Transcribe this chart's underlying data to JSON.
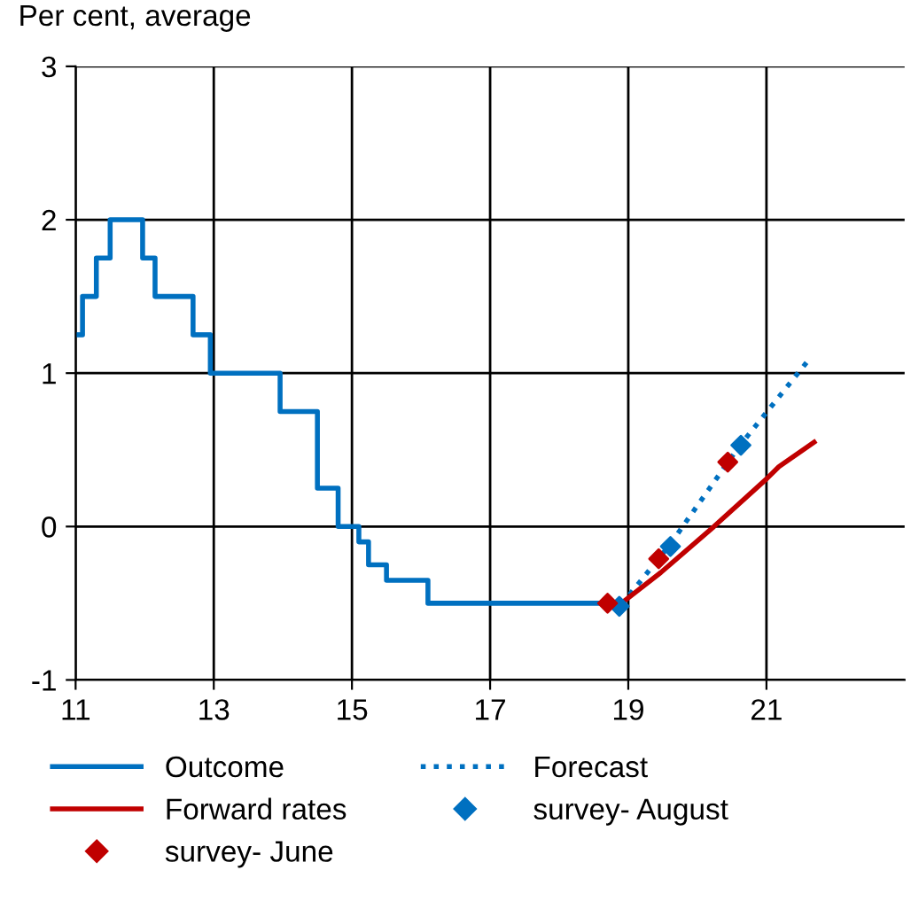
{
  "chart_data": {
    "type": "step",
    "ylabel": "Per cent, average",
    "xlim": [
      11,
      23
    ],
    "xticks": [
      11,
      13,
      15,
      17,
      19,
      21
    ],
    "ylim": [
      -1,
      3
    ],
    "yticks": [
      -1,
      0,
      1,
      2,
      3
    ],
    "grid": true,
    "legend": "bottom",
    "series": [
      {
        "name": "Outcome",
        "color": "#0070c0",
        "x": [
          11,
          11.1,
          11.3,
          11.5,
          11.97,
          12.15,
          12.7,
          12.95,
          13.96,
          14.5,
          14.8,
          15.1,
          15.24,
          15.5,
          16.1,
          18.85
        ],
        "values": [
          1.25,
          1.5,
          1.75,
          2,
          1.75,
          1.5,
          1.25,
          1,
          0.75,
          0.25,
          0,
          -0.1,
          -0.25,
          -0.35,
          -0.5,
          -0.5
        ]
      },
      {
        "name": "Forecast",
        "color": "#0070c0",
        "type": "line",
        "line_style": "dotted",
        "x": [
          18.9,
          19.6,
          20.6,
          21.6
        ],
        "values": [
          -0.51,
          -0.12,
          0.52,
          1.08
        ]
      },
      {
        "name": "Forward rates",
        "color": "#c00000",
        "type": "line",
        "line_style": "solid",
        "x": [
          18.9,
          19.47,
          20.24,
          21.0,
          21.18,
          21.69
        ],
        "values": [
          -0.5,
          -0.3,
          0.0,
          0.31,
          0.39,
          0.55
        ]
      },
      {
        "name": "survey- August",
        "color": "#0070c0",
        "type": "scatter",
        "marker": "diamond",
        "x": [
          18.87,
          19.61,
          20.63
        ],
        "values": [
          -0.52,
          -0.13,
          0.53
        ]
      },
      {
        "name": "survey- June",
        "color": "#c00000",
        "type": "scatter",
        "marker": "diamond",
        "x": [
          18.7,
          19.44,
          20.44
        ],
        "values": [
          -0.5,
          -0.21,
          0.42
        ]
      }
    ]
  }
}
